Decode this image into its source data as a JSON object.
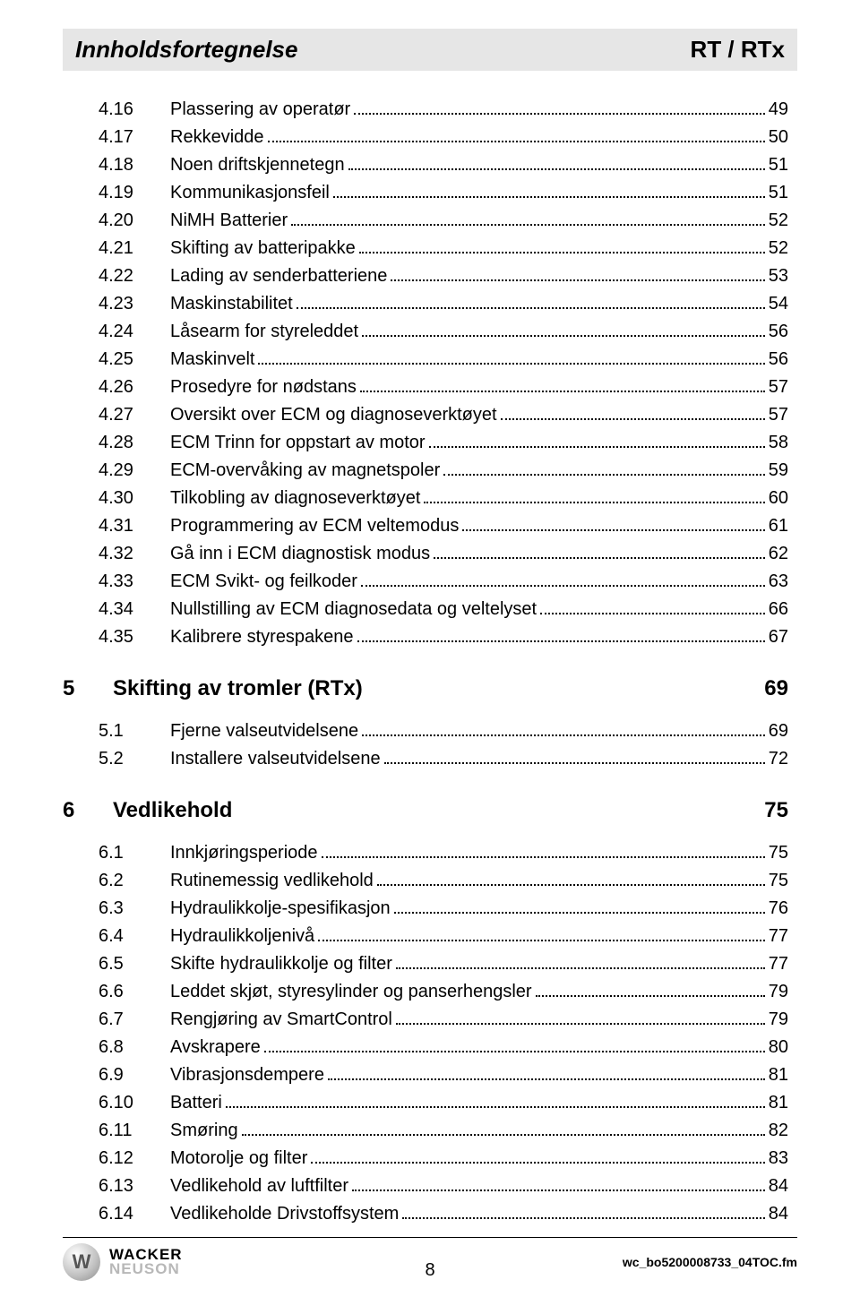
{
  "header": {
    "left": "Innholdsfortegnelse",
    "right": "RT / RTx"
  },
  "continued": [
    {
      "num": "4.16",
      "title": "Plassering av operatør",
      "page": "49"
    },
    {
      "num": "4.17",
      "title": "Rekkevidde",
      "page": "50"
    },
    {
      "num": "4.18",
      "title": "Noen driftskjennetegn",
      "page": "51"
    },
    {
      "num": "4.19",
      "title": "Kommunikasjonsfeil",
      "page": "51"
    },
    {
      "num": "4.20",
      "title": "NiMH Batterier",
      "page": "52"
    },
    {
      "num": "4.21",
      "title": "Skifting av batteripakke",
      "page": "52"
    },
    {
      "num": "4.22",
      "title": "Lading av senderbatteriene",
      "page": "53"
    },
    {
      "num": "4.23",
      "title": "Maskinstabilitet",
      "page": "54"
    },
    {
      "num": "4.24",
      "title": "Låsearm for styreleddet",
      "page": "56"
    },
    {
      "num": "4.25",
      "title": "Maskinvelt",
      "page": "56"
    },
    {
      "num": "4.26",
      "title": "Prosedyre for nødstans",
      "page": "57"
    },
    {
      "num": "4.27",
      "title": "Oversikt over ECM og diagnoseverktøyet",
      "page": "57"
    },
    {
      "num": "4.28",
      "title": "ECM Trinn for oppstart av motor",
      "page": "58"
    },
    {
      "num": "4.29",
      "title": "ECM-overvåking av magnetspoler",
      "page": "59"
    },
    {
      "num": "4.30",
      "title": "Tilkobling av diagnoseverktøyet",
      "page": "60"
    },
    {
      "num": "4.31",
      "title": "Programmering av ECM veltemodus",
      "page": "61"
    },
    {
      "num": "4.32",
      "title": "Gå inn i ECM diagnostisk modus",
      "page": "62"
    },
    {
      "num": "4.33",
      "title": "ECM Svikt- og feilkoder",
      "page": "63"
    },
    {
      "num": "4.34",
      "title": "Nullstilling av ECM diagnosedata og veltelyset",
      "page": "66"
    },
    {
      "num": "4.35",
      "title": "Kalibrere styrespakene",
      "page": "67"
    }
  ],
  "sections": [
    {
      "num": "5",
      "title": "Skifting av tromler (RTx)",
      "page": "69",
      "items": [
        {
          "num": "5.1",
          "title": "Fjerne valseutvidelsene",
          "page": "69"
        },
        {
          "num": "5.2",
          "title": "Installere valseutvidelsene",
          "page": "72"
        }
      ]
    },
    {
      "num": "6",
      "title": "Vedlikehold",
      "page": "75",
      "items": [
        {
          "num": "6.1",
          "title": "Innkjøringsperiode",
          "page": "75"
        },
        {
          "num": "6.2",
          "title": "Rutinemessig vedlikehold",
          "page": "75"
        },
        {
          "num": "6.3",
          "title": "Hydraulikkolje-spesifikasjon",
          "page": "76"
        },
        {
          "num": "6.4",
          "title": "Hydraulikkoljenivå",
          "page": "77"
        },
        {
          "num": "6.5",
          "title": "Skifte hydraulikkolje og filter",
          "page": "77"
        },
        {
          "num": "6.6",
          "title": "Leddet skjøt, styresylinder og panserhengsler",
          "page": "79"
        },
        {
          "num": "6.7",
          "title": "Rengjøring av SmartControl",
          "page": "79"
        },
        {
          "num": "6.8",
          "title": "Avskrapere",
          "page": "80"
        },
        {
          "num": "6.9",
          "title": " Vibrasjonsdempere",
          "page": "81"
        },
        {
          "num": "6.10",
          "title": "Batteri",
          "page": "81"
        },
        {
          "num": "6.11",
          "title": "Smøring",
          "page": "82"
        },
        {
          "num": "6.12",
          "title": "Motorolje og filter",
          "page": "83"
        },
        {
          "num": "6.13",
          "title": "Vedlikehold av luftfilter",
          "page": "84"
        },
        {
          "num": "6.14",
          "title": " Vedlikeholde Drivstoffsystem",
          "page": "84"
        }
      ]
    }
  ],
  "footer": {
    "logo": {
      "circle": "W",
      "line1": "WACKER",
      "line2": "NEUSON"
    },
    "pageNumber": "8",
    "docId": "wc_bo5200008733_04TOC.fm"
  }
}
